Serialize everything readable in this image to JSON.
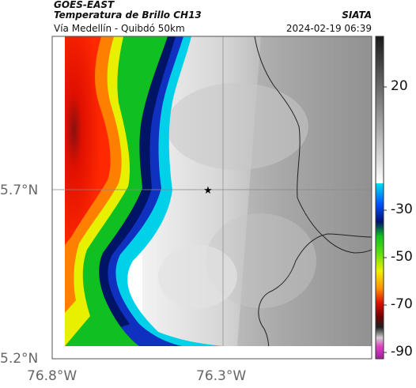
{
  "header": {
    "satellite": "GOES-EAST",
    "product": "Temperatura de Brillo CH13",
    "location": "Vía Medellín - Quibdó 50km",
    "org": "SIATA",
    "datetime": "2024-02-19 06:39"
  },
  "axes": {
    "lat_ticks": [
      "5.7°N",
      "5.2°N"
    ],
    "lon_ticks": [
      "76.8°W",
      "76.3°W"
    ]
  },
  "colorbar": {
    "labels": [
      "20",
      "-30",
      "-50",
      "-70",
      "-90"
    ]
  },
  "marker": {
    "symbol": "★",
    "name": "Quibdó"
  },
  "colors": {
    "warm_gray_light": "#f0f0f0",
    "warm_gray_dark": "#8c8c8c",
    "cyan": "#00d0e8",
    "blue": "#1030c0",
    "navy": "#001466",
    "green": "#10c020",
    "yellow": "#e8f000",
    "orange": "#ff8000",
    "red": "#e01000",
    "darkred": "#801010"
  }
}
